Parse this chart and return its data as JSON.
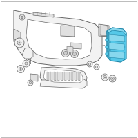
{
  "background_color": "#ffffff",
  "line_color": "#666666",
  "light_fill": "#f2f2f2",
  "mid_fill": "#e0e0e0",
  "highlight_color": "#55c8e8",
  "highlight_stroke": "#2288aa",
  "highlight_fill2": "#88d8ee",
  "figsize": [
    2.0,
    2.0
  ],
  "dpi": 100,
  "border_color": "#bbbbbb"
}
